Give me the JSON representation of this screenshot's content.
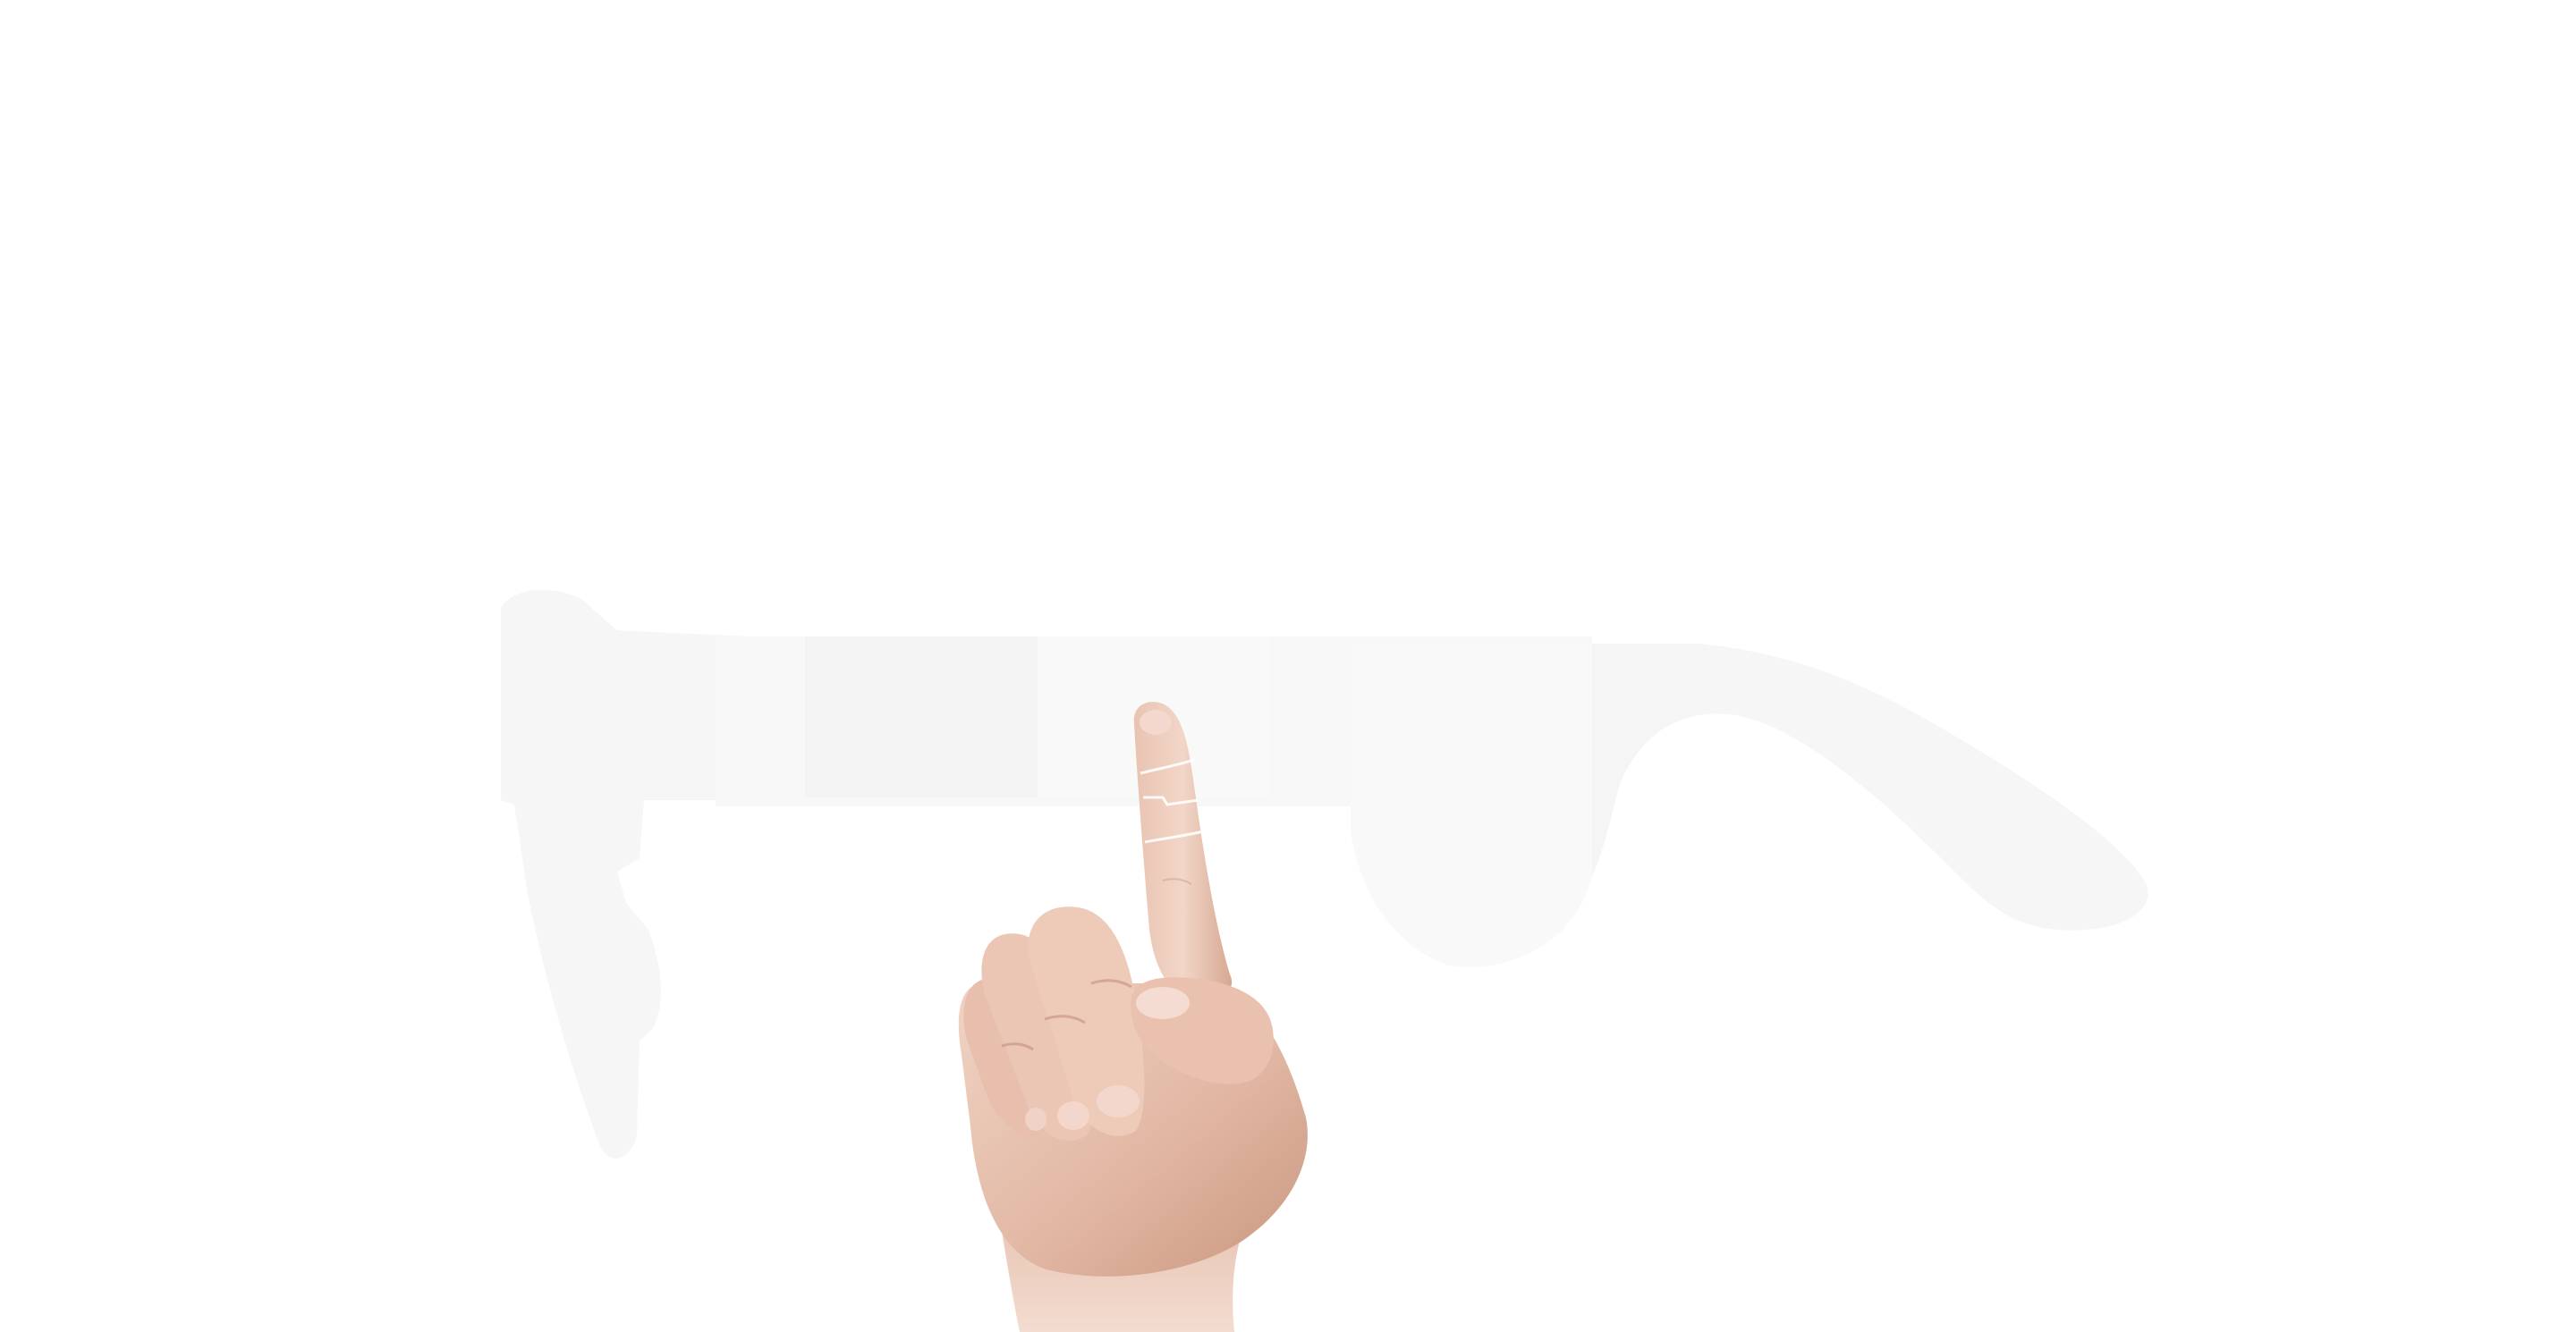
{
  "colors": {
    "background": "#ffffff",
    "glasses_ghost": "#f5f5f5",
    "glasses_ghost_edge": "#efefef",
    "skin_light": "#f0d3c4",
    "skin_mid": "#e2b8a4",
    "skin_shadow": "#c9967f",
    "nail": "#f3d6cc",
    "crease": "#b98470",
    "glow_line": "#ffffff"
  },
  "icons": {
    "glasses": "faint-smart-glasses-silhouette",
    "hand": "hand-pointing-up"
  }
}
